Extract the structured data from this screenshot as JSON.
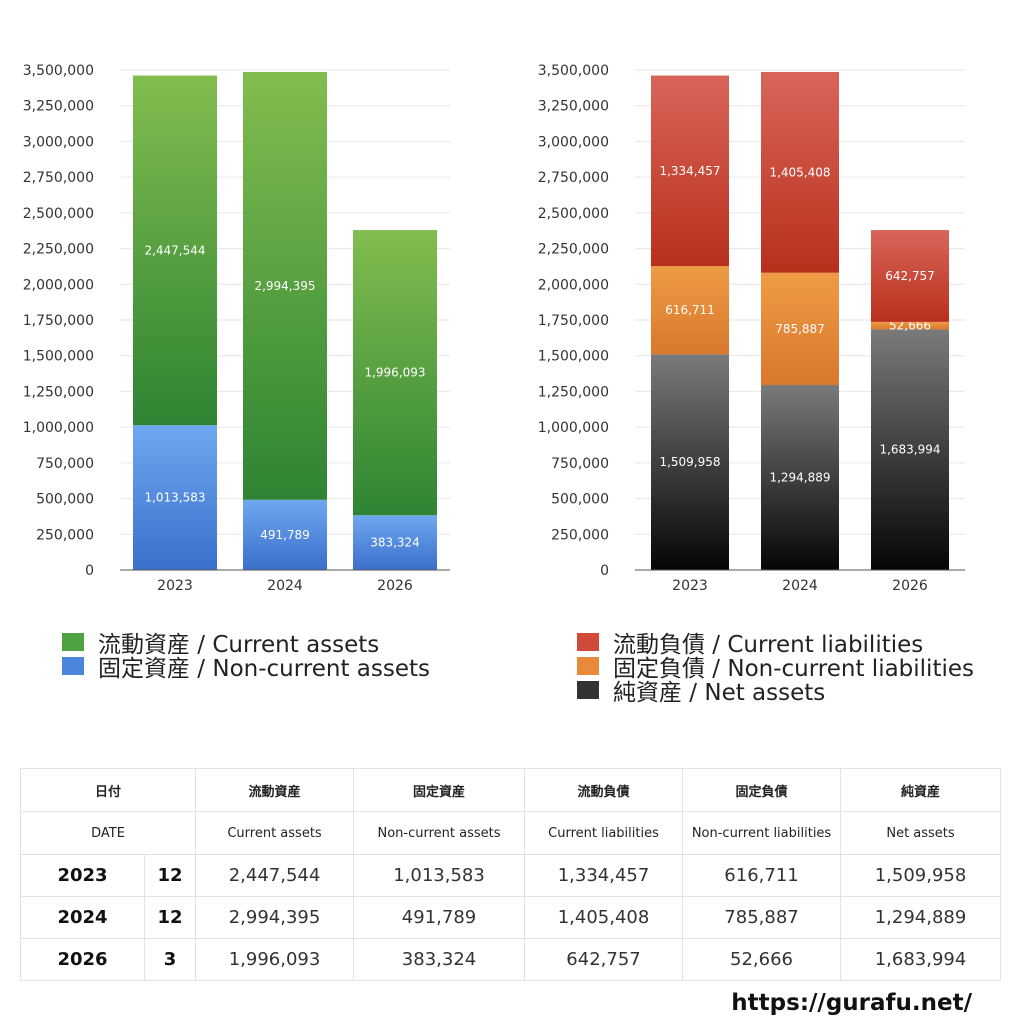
{
  "chart_data": [
    {
      "type": "bar",
      "stacked": true,
      "categories": [
        "2023",
        "2024",
        "2026"
      ],
      "series": [
        {
          "name": "固定資産 / Non-current assets",
          "values": [
            1013583,
            491789,
            383324
          ],
          "color_top": "#6fa8ef",
          "color_bottom": "#3a6fcc"
        },
        {
          "name": "流動資産 / Current assets",
          "values": [
            2447544,
            2994395,
            1996093
          ],
          "color_top": "#82bd4f",
          "color_bottom": "#2e8433"
        }
      ],
      "yticks": [
        "0",
        "250,000",
        "500,000",
        "750,000",
        "1,000,000",
        "1,250,000",
        "1,500,000",
        "1,750,000",
        "2,000,000",
        "2,250,000",
        "2,500,000",
        "2,750,000",
        "3,000,000",
        "3,250,000",
        "3,500,000"
      ],
      "ylim": [
        0,
        3500000
      ],
      "grid": true
    },
    {
      "type": "bar",
      "stacked": true,
      "categories": [
        "2023",
        "2024",
        "2026"
      ],
      "series": [
        {
          "name": "純資産 / Net assets",
          "values": [
            1509958,
            1294889,
            1683994
          ],
          "color_top": "#7a7a7a",
          "color_bottom": "#050505"
        },
        {
          "name": "固定負債 / Non-current liabilities",
          "values": [
            616711,
            785887,
            52666
          ],
          "color_top": "#ee9b45",
          "color_bottom": "#d9782b"
        },
        {
          "name": "流動負債 / Current liabilities",
          "values": [
            1334457,
            1405408,
            642757
          ],
          "color_top": "#d8655a",
          "color_bottom": "#b8301c"
        }
      ],
      "yticks": [
        "0",
        "250,000",
        "500,000",
        "750,000",
        "1,000,000",
        "1,250,000",
        "1,500,000",
        "1,750,000",
        "2,000,000",
        "2,250,000",
        "2,500,000",
        "2,750,000",
        "3,000,000",
        "3,250,000",
        "3,500,000"
      ],
      "ylim": [
        0,
        3500000
      ],
      "grid": true
    }
  ],
  "legend_left": [
    {
      "label": "流動資産 / Current assets",
      "color": "#4ea23f"
    },
    {
      "label": "固定資産 / Non-current assets",
      "color": "#4a86dc"
    }
  ],
  "legend_right": [
    {
      "label": "流動負債 / Current liabilities",
      "color": "#cf4a38"
    },
    {
      "label": "固定負債 / Non-current liabilities",
      "color": "#e88a3a"
    },
    {
      "label": "純資産 / Net assets",
      "color": "#333333"
    }
  ],
  "table": {
    "header_jp": [
      "日付",
      "流動資産",
      "固定資産",
      "流動負債",
      "固定負債",
      "純資産"
    ],
    "header_en": [
      "DATE",
      "Current assets",
      "Non-current assets",
      "Current liabilities",
      "Non-current liabilities",
      "Net assets"
    ],
    "rows": [
      {
        "year": "2023",
        "month": "12",
        "values": [
          "2,447,544",
          "1,013,583",
          "1,334,457",
          "616,711",
          "1,509,958"
        ]
      },
      {
        "year": "2024",
        "month": "12",
        "values": [
          "2,994,395",
          "491,789",
          "1,405,408",
          "785,887",
          "1,294,889"
        ]
      },
      {
        "year": "2026",
        "month": "3",
        "values": [
          "1,996,093",
          "383,324",
          "642,757",
          "52,666",
          "1,683,994"
        ]
      }
    ]
  },
  "url": "https://gurafu.net/"
}
